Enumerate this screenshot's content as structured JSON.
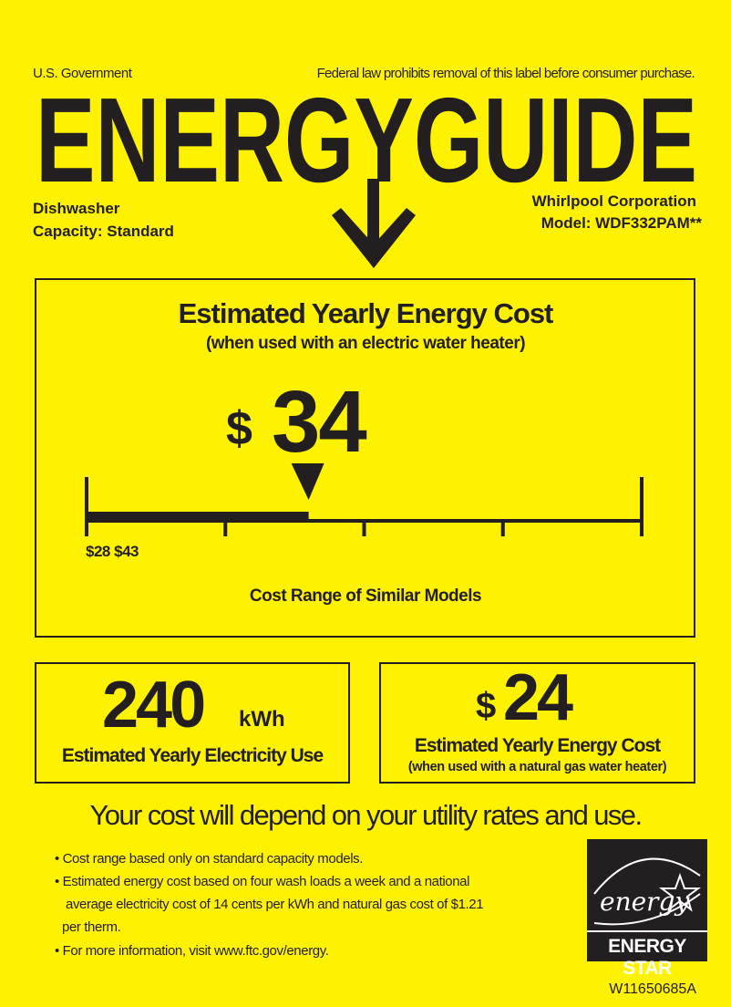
{
  "header": {
    "left": "U.S. Government",
    "right": "Federal law prohibits removal of this label before consumer purchase.",
    "title": "ENERGYGUIDE"
  },
  "product": {
    "type": "Dishwasher",
    "capacity": "Capacity: Standard",
    "manufacturer": "Whirlpool Corporation",
    "model": "Model:  WDF332PAM**"
  },
  "main": {
    "title": "Estimated Yearly Energy Cost",
    "subtitle": "(when used with an electric water heater)",
    "currency": "$",
    "value": "34",
    "range_low": "$28",
    "range_high": "$43",
    "range_label": "Cost Range of Similar Models",
    "scale": {
      "min": 28,
      "max": 43,
      "value": 34
    }
  },
  "electricity": {
    "value": "240",
    "unit": "kWh",
    "label": "Estimated Yearly Electricity Use"
  },
  "gas": {
    "currency": "$",
    "value": "24",
    "label": "Estimated Yearly Energy Cost",
    "sublabel": "(when used with a natural gas water heater)"
  },
  "footer": {
    "headline": "Your cost will depend on your utility rates and use.",
    "bullets": [
      "Cost range based only on standard capacity models.",
      "Estimated energy cost based on four wash loads a week and a national",
      "average electricity cost of 14 cents per kWh and natural gas cost of $1.21",
      "per therm.",
      "For more information, visit www.ftc.gov/energy."
    ],
    "logo_text": "ENERGY STAR",
    "logo_script": "energy",
    "label_id": "W11650685A"
  },
  "colors": {
    "background": "#fff200",
    "ink": "#231f20"
  }
}
